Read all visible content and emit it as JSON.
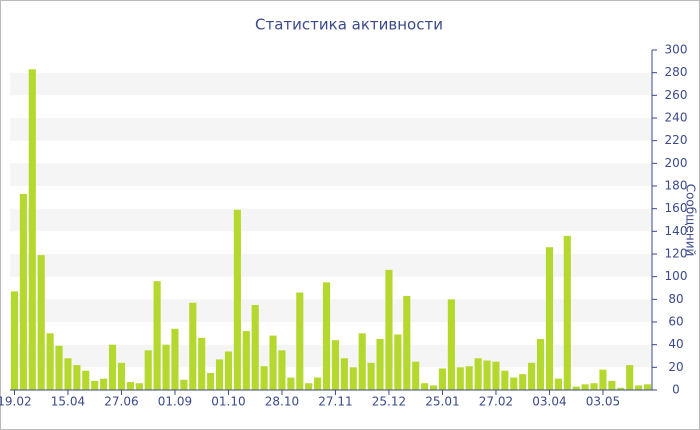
{
  "chart_data": {
    "type": "bar",
    "title": "Статистика активности",
    "y_label": "Сообщений",
    "categories": [
      "19.02",
      null,
      null,
      null,
      null,
      null,
      "15.04",
      null,
      null,
      null,
      null,
      null,
      "27.06",
      null,
      null,
      null,
      null,
      null,
      "01.09",
      null,
      null,
      null,
      null,
      null,
      "01.10",
      null,
      null,
      null,
      null,
      null,
      "28.10",
      null,
      null,
      null,
      null,
      null,
      "27.11",
      null,
      null,
      null,
      null,
      null,
      "25.12",
      null,
      null,
      null,
      null,
      null,
      "25.01",
      null,
      null,
      null,
      null,
      null,
      "27.02",
      null,
      null,
      null,
      null,
      null,
      "03.04",
      null,
      null,
      null,
      null,
      null,
      "03.05",
      null,
      null,
      null,
      null,
      null
    ],
    "values": [
      87,
      173,
      283,
      119,
      50,
      39,
      28,
      22,
      17,
      8,
      10,
      40,
      24,
      7,
      6,
      35,
      96,
      40,
      54,
      9,
      77,
      46,
      15,
      27,
      34,
      159,
      52,
      75,
      21,
      48,
      35,
      11,
      86,
      6,
      11,
      95,
      44,
      28,
      20,
      50,
      24,
      45,
      106,
      49,
      83,
      25,
      6,
      4,
      19,
      80,
      20,
      21,
      28,
      26,
      25,
      17,
      11,
      14,
      24,
      45,
      126,
      10,
      136,
      3,
      5,
      6,
      18,
      8,
      2,
      22,
      4,
      5
    ],
    "color": "#b5d82f",
    "ylim": [
      0,
      300
    ],
    "yticks": [
      0,
      20,
      40,
      60,
      80,
      100,
      120,
      140,
      160,
      180,
      200,
      220,
      240,
      260,
      280,
      300
    ],
    "grid": true
  }
}
